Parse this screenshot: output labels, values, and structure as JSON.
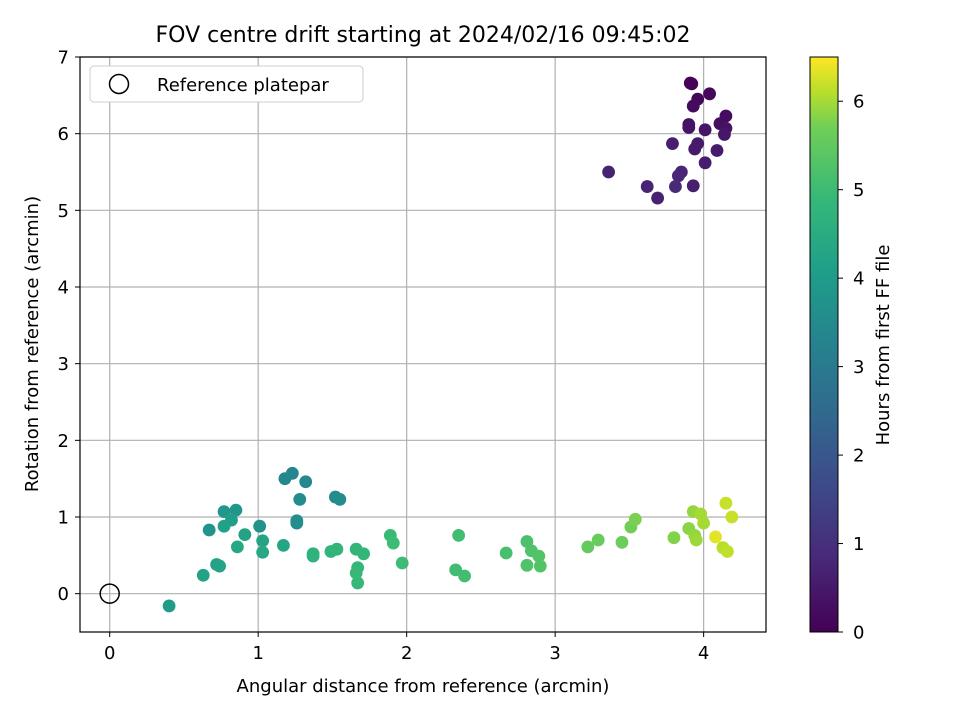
{
  "chart_data": {
    "type": "scatter",
    "title": "FOV centre drift starting at 2024/02/16 09:45:02",
    "xlabel": "Angular distance from reference (arcmin)",
    "ylabel": "Rotation from reference (arcmin)",
    "xlim": [
      -0.2,
      4.42
    ],
    "ylim": [
      -0.5,
      7
    ],
    "xticks": [
      "0",
      "1",
      "2",
      "3",
      "4"
    ],
    "yticks": [
      "0",
      "1",
      "2",
      "3",
      "4",
      "5",
      "6",
      "7"
    ],
    "grid": true,
    "legend": {
      "placement": "top-left",
      "entries": [
        "Reference platepar"
      ]
    },
    "reference_point": {
      "x": 0,
      "y": 0
    },
    "colorbar": {
      "label": "Hours from first FF file",
      "range": [
        0,
        6.5
      ],
      "ticks": [
        "0",
        "1",
        "2",
        "3",
        "4",
        "5",
        "6"
      ],
      "colormap": "viridis"
    },
    "points": [
      {
        "x": 3.91,
        "y": 6.66,
        "h": 0.05
      },
      {
        "x": 3.92,
        "y": 6.65,
        "h": 0.08
      },
      {
        "x": 3.96,
        "y": 6.45,
        "h": 0.12
      },
      {
        "x": 4.04,
        "y": 6.52,
        "h": 0.15
      },
      {
        "x": 3.93,
        "y": 6.36,
        "h": 0.2
      },
      {
        "x": 4.15,
        "y": 6.23,
        "h": 0.25
      },
      {
        "x": 4.11,
        "y": 6.13,
        "h": 0.3
      },
      {
        "x": 4.15,
        "y": 6.07,
        "h": 0.35
      },
      {
        "x": 3.9,
        "y": 6.12,
        "h": 0.35
      },
      {
        "x": 3.9,
        "y": 6.08,
        "h": 0.38
      },
      {
        "x": 4.01,
        "y": 6.05,
        "h": 0.42
      },
      {
        "x": 4.14,
        "y": 5.99,
        "h": 0.45
      },
      {
        "x": 3.96,
        "y": 5.87,
        "h": 0.5
      },
      {
        "x": 3.94,
        "y": 5.8,
        "h": 0.55
      },
      {
        "x": 4.09,
        "y": 5.78,
        "h": 0.55
      },
      {
        "x": 4.01,
        "y": 5.62,
        "h": 0.6
      },
      {
        "x": 3.79,
        "y": 5.87,
        "h": 0.62
      },
      {
        "x": 3.36,
        "y": 5.5,
        "h": 0.7
      },
      {
        "x": 3.85,
        "y": 5.5,
        "h": 0.75
      },
      {
        "x": 3.83,
        "y": 5.45,
        "h": 0.8
      },
      {
        "x": 3.62,
        "y": 5.31,
        "h": 0.72
      },
      {
        "x": 3.81,
        "y": 5.31,
        "h": 0.85
      },
      {
        "x": 3.93,
        "y": 5.32,
        "h": 0.62
      },
      {
        "x": 3.69,
        "y": 5.16,
        "h": 0.68
      },
      {
        "x": 1.23,
        "y": 1.57,
        "h": 3.4
      },
      {
        "x": 1.18,
        "y": 1.5,
        "h": 3.4
      },
      {
        "x": 1.32,
        "y": 1.46,
        "h": 3.45
      },
      {
        "x": 1.52,
        "y": 1.26,
        "h": 3.5
      },
      {
        "x": 1.55,
        "y": 1.23,
        "h": 3.55
      },
      {
        "x": 1.28,
        "y": 1.23,
        "h": 3.55
      },
      {
        "x": 1.26,
        "y": 0.95,
        "h": 3.6
      },
      {
        "x": 1.26,
        "y": 0.92,
        "h": 3.6
      },
      {
        "x": 0.85,
        "y": 1.09,
        "h": 3.8
      },
      {
        "x": 0.77,
        "y": 1.07,
        "h": 3.9
      },
      {
        "x": 0.82,
        "y": 0.96,
        "h": 4.1
      },
      {
        "x": 0.77,
        "y": 0.88,
        "h": 4.15
      },
      {
        "x": 0.67,
        "y": 0.83,
        "h": 3.75
      },
      {
        "x": 1.01,
        "y": 0.88,
        "h": 3.7
      },
      {
        "x": 0.91,
        "y": 0.77,
        "h": 4.2
      },
      {
        "x": 1.03,
        "y": 0.69,
        "h": 4.25
      },
      {
        "x": 1.17,
        "y": 0.63,
        "h": 4.3
      },
      {
        "x": 0.86,
        "y": 0.61,
        "h": 4.35
      },
      {
        "x": 1.03,
        "y": 0.54,
        "h": 4.35
      },
      {
        "x": 0.72,
        "y": 0.38,
        "h": 4.15
      },
      {
        "x": 0.74,
        "y": 0.36,
        "h": 4.25
      },
      {
        "x": 0.63,
        "y": 0.24,
        "h": 4.2
      },
      {
        "x": 0.4,
        "y": -0.16,
        "h": 4.0
      },
      {
        "x": 1.37,
        "y": 0.52,
        "h": 4.7
      },
      {
        "x": 1.37,
        "y": 0.49,
        "h": 4.7
      },
      {
        "x": 1.49,
        "y": 0.55,
        "h": 4.75
      },
      {
        "x": 1.53,
        "y": 0.58,
        "h": 4.8
      },
      {
        "x": 1.66,
        "y": 0.58,
        "h": 4.8
      },
      {
        "x": 1.71,
        "y": 0.52,
        "h": 4.85
      },
      {
        "x": 1.67,
        "y": 0.34,
        "h": 4.85
      },
      {
        "x": 1.67,
        "y": 0.14,
        "h": 4.9
      },
      {
        "x": 1.66,
        "y": 0.27,
        "h": 4.9
      },
      {
        "x": 1.89,
        "y": 0.76,
        "h": 4.95
      },
      {
        "x": 1.91,
        "y": 0.66,
        "h": 5.0
      },
      {
        "x": 1.97,
        "y": 0.4,
        "h": 5.0
      },
      {
        "x": 2.35,
        "y": 0.76,
        "h": 5.05
      },
      {
        "x": 2.33,
        "y": 0.31,
        "h": 5.05
      },
      {
        "x": 2.39,
        "y": 0.23,
        "h": 5.1
      },
      {
        "x": 2.67,
        "y": 0.53,
        "h": 5.15
      },
      {
        "x": 2.81,
        "y": 0.68,
        "h": 5.2
      },
      {
        "x": 2.84,
        "y": 0.56,
        "h": 5.25
      },
      {
        "x": 2.89,
        "y": 0.49,
        "h": 5.3
      },
      {
        "x": 2.81,
        "y": 0.37,
        "h": 5.25
      },
      {
        "x": 2.9,
        "y": 0.36,
        "h": 5.3
      },
      {
        "x": 3.22,
        "y": 0.61,
        "h": 5.55
      },
      {
        "x": 3.29,
        "y": 0.7,
        "h": 5.6
      },
      {
        "x": 3.45,
        "y": 0.67,
        "h": 5.65
      },
      {
        "x": 3.51,
        "y": 0.87,
        "h": 5.7
      },
      {
        "x": 3.54,
        "y": 0.97,
        "h": 5.75
      },
      {
        "x": 3.8,
        "y": 0.73,
        "h": 5.8
      },
      {
        "x": 3.9,
        "y": 0.85,
        "h": 5.85
      },
      {
        "x": 3.93,
        "y": 1.07,
        "h": 5.9
      },
      {
        "x": 3.94,
        "y": 0.76,
        "h": 5.9
      },
      {
        "x": 3.95,
        "y": 0.7,
        "h": 5.95
      },
      {
        "x": 3.98,
        "y": 1.04,
        "h": 6.0
      },
      {
        "x": 4.0,
        "y": 0.92,
        "h": 6.0
      },
      {
        "x": 4.08,
        "y": 0.74,
        "h": 6.35
      },
      {
        "x": 4.13,
        "y": 0.6,
        "h": 6.1
      },
      {
        "x": 4.16,
        "y": 0.55,
        "h": 6.15
      },
      {
        "x": 4.15,
        "y": 1.18,
        "h": 6.2
      },
      {
        "x": 4.19,
        "y": 1.0,
        "h": 6.2
      }
    ]
  }
}
